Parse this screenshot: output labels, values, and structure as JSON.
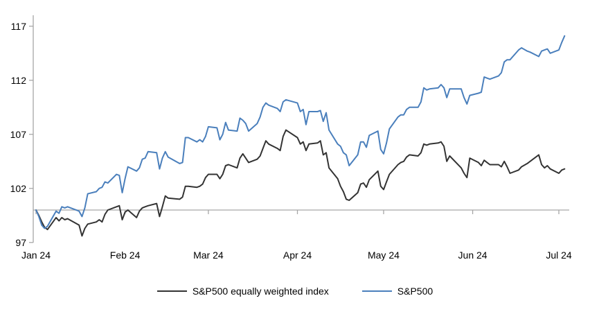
{
  "chart_data": {
    "type": "line",
    "title": "",
    "xlabel": "",
    "ylabel": "",
    "x_unit": "date",
    "grid": false,
    "legend_position": "bottom",
    "y_axis": {
      "ticks": [
        97,
        102,
        107,
        112,
        117
      ],
      "min": 97,
      "max": 117.5,
      "axis_cross_value": 100
    },
    "baseline_value": 100,
    "x_ticks": [
      {
        "label": "Jan 24",
        "date": "2024-01-01"
      },
      {
        "label": "Feb 24",
        "date": "2024-02-01"
      },
      {
        "label": "Mar 24",
        "date": "2024-03-01"
      },
      {
        "label": "Apr 24",
        "date": "2024-04-01"
      },
      {
        "label": "May 24",
        "date": "2024-05-01"
      },
      {
        "label": "Jun 24",
        "date": "2024-06-01"
      },
      {
        "label": "Jul 24",
        "date": "2024-07-01"
      }
    ],
    "dates": [
      "2024-01-01",
      "2024-01-02",
      "2024-01-03",
      "2024-01-04",
      "2024-01-05",
      "2024-01-08",
      "2024-01-09",
      "2024-01-10",
      "2024-01-11",
      "2024-01-12",
      "2024-01-16",
      "2024-01-17",
      "2024-01-18",
      "2024-01-19",
      "2024-01-22",
      "2024-01-23",
      "2024-01-24",
      "2024-01-25",
      "2024-01-26",
      "2024-01-29",
      "2024-01-30",
      "2024-01-31",
      "2024-02-01",
      "2024-02-02",
      "2024-02-05",
      "2024-02-06",
      "2024-02-07",
      "2024-02-08",
      "2024-02-09",
      "2024-02-12",
      "2024-02-13",
      "2024-02-14",
      "2024-02-15",
      "2024-02-16",
      "2024-02-20",
      "2024-02-21",
      "2024-02-22",
      "2024-02-23",
      "2024-02-26",
      "2024-02-27",
      "2024-02-28",
      "2024-02-29",
      "2024-03-01",
      "2024-03-04",
      "2024-03-05",
      "2024-03-06",
      "2024-03-07",
      "2024-03-08",
      "2024-03-11",
      "2024-03-12",
      "2024-03-13",
      "2024-03-14",
      "2024-03-15",
      "2024-03-18",
      "2024-03-19",
      "2024-03-20",
      "2024-03-21",
      "2024-03-22",
      "2024-03-25",
      "2024-03-26",
      "2024-03-27",
      "2024-03-28",
      "2024-04-01",
      "2024-04-02",
      "2024-04-03",
      "2024-04-04",
      "2024-04-05",
      "2024-04-08",
      "2024-04-09",
      "2024-04-10",
      "2024-04-11",
      "2024-04-12",
      "2024-04-15",
      "2024-04-16",
      "2024-04-17",
      "2024-04-18",
      "2024-04-19",
      "2024-04-22",
      "2024-04-23",
      "2024-04-24",
      "2024-04-25",
      "2024-04-26",
      "2024-04-29",
      "2024-04-30",
      "2024-05-01",
      "2024-05-02",
      "2024-05-03",
      "2024-05-06",
      "2024-05-07",
      "2024-05-08",
      "2024-05-09",
      "2024-05-10",
      "2024-05-13",
      "2024-05-14",
      "2024-05-15",
      "2024-05-16",
      "2024-05-17",
      "2024-05-20",
      "2024-05-21",
      "2024-05-22",
      "2024-05-23",
      "2024-05-24",
      "2024-05-28",
      "2024-05-29",
      "2024-05-30",
      "2024-05-31",
      "2024-06-03",
      "2024-06-04",
      "2024-06-05",
      "2024-06-06",
      "2024-06-07",
      "2024-06-10",
      "2024-06-11",
      "2024-06-12",
      "2024-06-13",
      "2024-06-14",
      "2024-06-17",
      "2024-06-18",
      "2024-06-20",
      "2024-06-21",
      "2024-06-24",
      "2024-06-25",
      "2024-06-26",
      "2024-06-27",
      "2024-06-28",
      "2024-07-01",
      "2024-07-02",
      "2024-07-03"
    ],
    "series": [
      {
        "name": "S&P500 equally weighted index",
        "color": "#333333",
        "values": [
          100.0,
          99.5,
          98.9,
          98.4,
          98.2,
          99.3,
          99.0,
          99.3,
          99.1,
          99.2,
          98.6,
          97.6,
          98.3,
          98.7,
          98.9,
          99.1,
          98.9,
          99.6,
          100.0,
          100.3,
          100.4,
          99.1,
          99.8,
          100.0,
          99.3,
          99.9,
          100.2,
          100.3,
          100.4,
          100.6,
          99.4,
          100.3,
          101.3,
          101.1,
          101.0,
          101.2,
          102.2,
          102.2,
          102.1,
          102.2,
          102.4,
          103.0,
          103.3,
          103.3,
          102.9,
          103.3,
          104.1,
          104.2,
          103.9,
          104.8,
          105.2,
          104.8,
          104.4,
          104.7,
          105.0,
          105.7,
          106.4,
          106.1,
          105.7,
          105.5,
          106.8,
          107.4,
          106.7,
          106.1,
          106.3,
          105.5,
          106.1,
          106.2,
          106.4,
          105.1,
          105.3,
          103.9,
          102.9,
          102.2,
          101.7,
          101.0,
          100.9,
          101.6,
          102.4,
          102.5,
          102.1,
          102.8,
          103.6,
          102.2,
          101.9,
          102.6,
          103.3,
          104.2,
          104.4,
          104.5,
          104.9,
          105.1,
          105.0,
          105.3,
          106.1,
          106.0,
          106.1,
          106.2,
          106.3,
          105.9,
          104.5,
          105.0,
          103.9,
          103.4,
          103.0,
          104.8,
          104.4,
          104.1,
          104.6,
          104.4,
          104.2,
          104.2,
          104.0,
          104.5,
          104.0,
          103.4,
          103.7,
          104.0,
          104.3,
          104.5,
          105.1,
          104.2,
          103.9,
          104.1,
          103.8,
          103.4,
          103.7,
          103.8
        ]
      },
      {
        "name": "S&P500",
        "color": "#4a7fbc",
        "values": [
          100.0,
          99.4,
          98.6,
          98.3,
          98.5,
          99.9,
          99.7,
          100.3,
          100.2,
          100.3,
          99.9,
          99.4,
          100.2,
          101.5,
          101.7,
          102.0,
          102.1,
          102.6,
          102.5,
          103.3,
          103.2,
          101.6,
          102.9,
          104.0,
          103.6,
          103.9,
          104.7,
          104.8,
          105.4,
          105.3,
          103.8,
          104.8,
          105.4,
          104.9,
          104.3,
          104.4,
          106.7,
          106.7,
          106.3,
          106.5,
          106.3,
          106.8,
          107.7,
          107.6,
          106.5,
          107.0,
          108.1,
          107.4,
          107.3,
          108.5,
          108.3,
          108.0,
          107.3,
          108.0,
          108.6,
          109.5,
          109.9,
          109.7,
          109.4,
          109.1,
          110.0,
          110.2,
          109.9,
          109.1,
          109.3,
          107.9,
          109.1,
          109.1,
          109.2,
          108.2,
          109.0,
          107.4,
          106.1,
          105.9,
          105.3,
          105.1,
          104.1,
          105.1,
          106.3,
          106.3,
          105.8,
          106.9,
          107.3,
          105.6,
          105.2,
          106.2,
          107.5,
          108.6,
          108.8,
          108.8,
          109.3,
          109.5,
          109.5,
          110.0,
          111.3,
          111.1,
          111.2,
          111.3,
          111.6,
          111.3,
          110.4,
          111.2,
          111.2,
          110.4,
          109.8,
          110.6,
          110.8,
          110.9,
          112.3,
          112.2,
          112.1,
          112.4,
          112.7,
          113.7,
          113.9,
          113.9,
          114.8,
          115.0,
          114.7,
          114.6,
          114.2,
          114.7,
          114.8,
          114.9,
          114.5,
          114.8,
          115.5,
          116.1
        ]
      }
    ]
  },
  "legend": {
    "items": [
      {
        "label": "S&P500 equally weighted index",
        "color": "#333333"
      },
      {
        "label": "S&P500",
        "color": "#4a7fbc"
      }
    ]
  },
  "colors": {
    "background": "#ffffff",
    "axis_line": "#a6a6a6",
    "baseline": "#a6a6a6",
    "tick_label": "#000000",
    "series_ewi": "#333333",
    "series_sp500": "#4a7fbc"
  }
}
